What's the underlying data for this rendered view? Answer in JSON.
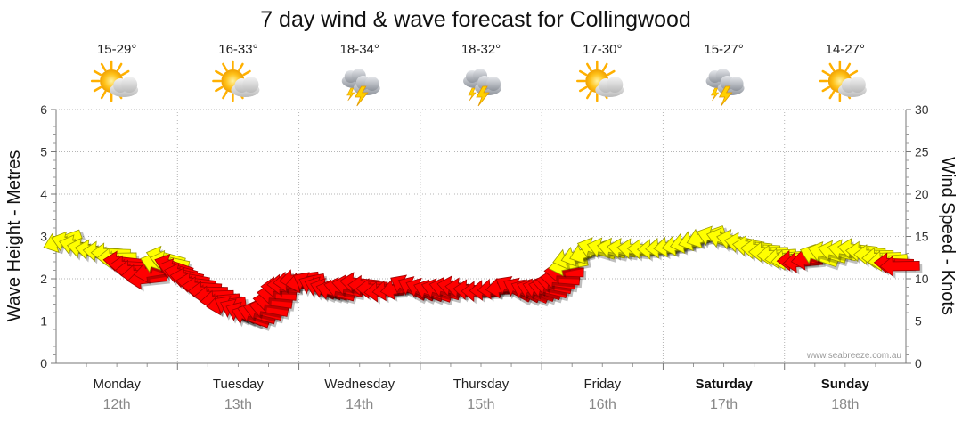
{
  "chart_data": {
    "type": "line",
    "title": "7 day wind & wave forecast for Collingwood",
    "ylabel": "Wave Height - Metres",
    "y2label": "Wind Speed - Knots",
    "ylim": [
      0,
      6
    ],
    "y2lim": [
      0,
      30
    ],
    "yticks": [
      "0",
      "1",
      "2",
      "3",
      "4",
      "5",
      "6"
    ],
    "y2ticks": [
      "0",
      "5",
      "10",
      "15",
      "20",
      "25",
      "30"
    ],
    "days": [
      {
        "name": "Monday",
        "date": "12th",
        "temp": "15-29°",
        "icon": "sun-cloud-icon",
        "weekend": false
      },
      {
        "name": "Tuesday",
        "date": "13th",
        "temp": "16-33°",
        "icon": "sun-cloud-icon",
        "weekend": false
      },
      {
        "name": "Wednesday",
        "date": "14th",
        "temp": "18-34°",
        "icon": "storm-icon",
        "weekend": false
      },
      {
        "name": "Thursday",
        "date": "15th",
        "temp": "18-32°",
        "icon": "storm-icon",
        "weekend": false
      },
      {
        "name": "Friday",
        "date": "16th",
        "temp": "17-30°",
        "icon": "sun-cloud-icon",
        "weekend": false
      },
      {
        "name": "Saturday",
        "date": "17th",
        "temp": "15-27°",
        "icon": "storm-icon",
        "weekend": true
      },
      {
        "name": "Sunday",
        "date": "18th",
        "temp": "14-27°",
        "icon": "sun-cloud-icon",
        "weekend": true
      }
    ],
    "series": [
      {
        "name": "Wind Speed (knots)",
        "unit": "knots",
        "x_unit": "days from Monday 00:00",
        "points": [
          {
            "t": 0.05,
            "v": 14.5,
            "c": "#ffff00"
          },
          {
            "t": 0.25,
            "v": 13.5,
            "c": "#ffff00"
          },
          {
            "t": 0.45,
            "v": 13.0,
            "c": "#ffff00"
          },
          {
            "t": 0.6,
            "v": 11.5,
            "c": "#ff0000"
          },
          {
            "t": 0.75,
            "v": 10.0,
            "c": "#ff0000"
          },
          {
            "t": 0.9,
            "v": 12.5,
            "c": "#ffff00"
          },
          {
            "t": 1.0,
            "v": 11.0,
            "c": "#ff0000"
          },
          {
            "t": 1.15,
            "v": 9.5,
            "c": "#ff0000"
          },
          {
            "t": 1.3,
            "v": 8.0,
            "c": "#ff0000"
          },
          {
            "t": 1.45,
            "v": 6.5,
            "c": "#ff0000"
          },
          {
            "t": 1.6,
            "v": 5.5,
            "c": "#ff0000"
          },
          {
            "t": 1.75,
            "v": 6.5,
            "c": "#ff0000"
          },
          {
            "t": 1.85,
            "v": 9.0,
            "c": "#ff0000"
          },
          {
            "t": 2.0,
            "v": 10.0,
            "c": "#ff0000"
          },
          {
            "t": 2.15,
            "v": 9.0,
            "c": "#ff0000"
          },
          {
            "t": 2.3,
            "v": 8.5,
            "c": "#ff0000"
          },
          {
            "t": 2.5,
            "v": 9.5,
            "c": "#ff0000"
          },
          {
            "t": 2.7,
            "v": 8.5,
            "c": "#ff0000"
          },
          {
            "t": 2.9,
            "v": 9.0,
            "c": "#ff0000"
          },
          {
            "t": 3.1,
            "v": 8.5,
            "c": "#ff0000"
          },
          {
            "t": 3.3,
            "v": 9.0,
            "c": "#ff0000"
          },
          {
            "t": 3.5,
            "v": 8.5,
            "c": "#ff0000"
          },
          {
            "t": 3.7,
            "v": 9.0,
            "c": "#ff0000"
          },
          {
            "t": 3.9,
            "v": 8.5,
            "c": "#ff0000"
          },
          {
            "t": 4.05,
            "v": 8.8,
            "c": "#ff0000"
          },
          {
            "t": 4.15,
            "v": 10.0,
            "c": "#ff0000"
          },
          {
            "t": 4.25,
            "v": 12.5,
            "c": "#ffff00"
          },
          {
            "t": 4.45,
            "v": 13.5,
            "c": "#ffff00"
          },
          {
            "t": 4.7,
            "v": 13.5,
            "c": "#ffff00"
          },
          {
            "t": 4.95,
            "v": 13.5,
            "c": "#ffff00"
          },
          {
            "t": 5.15,
            "v": 14.0,
            "c": "#ffff00"
          },
          {
            "t": 5.35,
            "v": 15.0,
            "c": "#ffff00"
          },
          {
            "t": 5.6,
            "v": 14.5,
            "c": "#ffff00"
          },
          {
            "t": 5.8,
            "v": 13.5,
            "c": "#ffff00"
          },
          {
            "t": 6.0,
            "v": 12.5,
            "c": "#ffff00"
          },
          {
            "t": 6.15,
            "v": 12.0,
            "c": "#ff0000"
          },
          {
            "t": 6.35,
            "v": 13.0,
            "c": "#ffff00"
          },
          {
            "t": 6.6,
            "v": 13.5,
            "c": "#ffff00"
          },
          {
            "t": 6.8,
            "v": 12.5,
            "c": "#ffff00"
          },
          {
            "t": 6.95,
            "v": 11.5,
            "c": "#ff0000"
          }
        ]
      }
    ],
    "watermark": "www.seabreeze.com.au"
  }
}
